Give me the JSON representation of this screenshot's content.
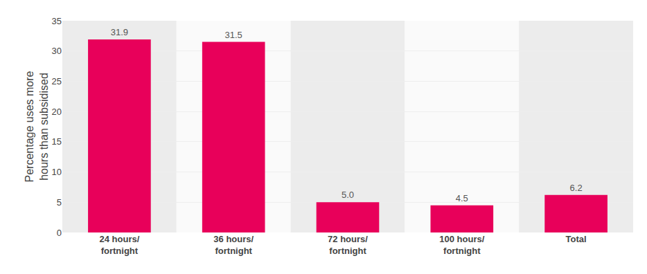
{
  "chart_data": {
    "type": "bar",
    "categories": [
      "24 hours/\nfortnight",
      "36 hours/\nfortnight",
      "72 hours/\nfortnight",
      "100 hours/\nfortnight",
      "Total"
    ],
    "values": [
      31.9,
      31.5,
      5.0,
      4.5,
      6.2
    ],
    "value_labels": [
      "31.9",
      "31.5",
      "5.0",
      "4.5",
      "6.2"
    ],
    "data_labels": true,
    "color": "#E8005A",
    "ylabel": "Percentage uses more\nhours than subsidised",
    "ylim": [
      0,
      35
    ],
    "yticks": [
      0,
      5,
      10,
      15,
      20,
      25,
      30,
      35
    ],
    "grid": true
  }
}
